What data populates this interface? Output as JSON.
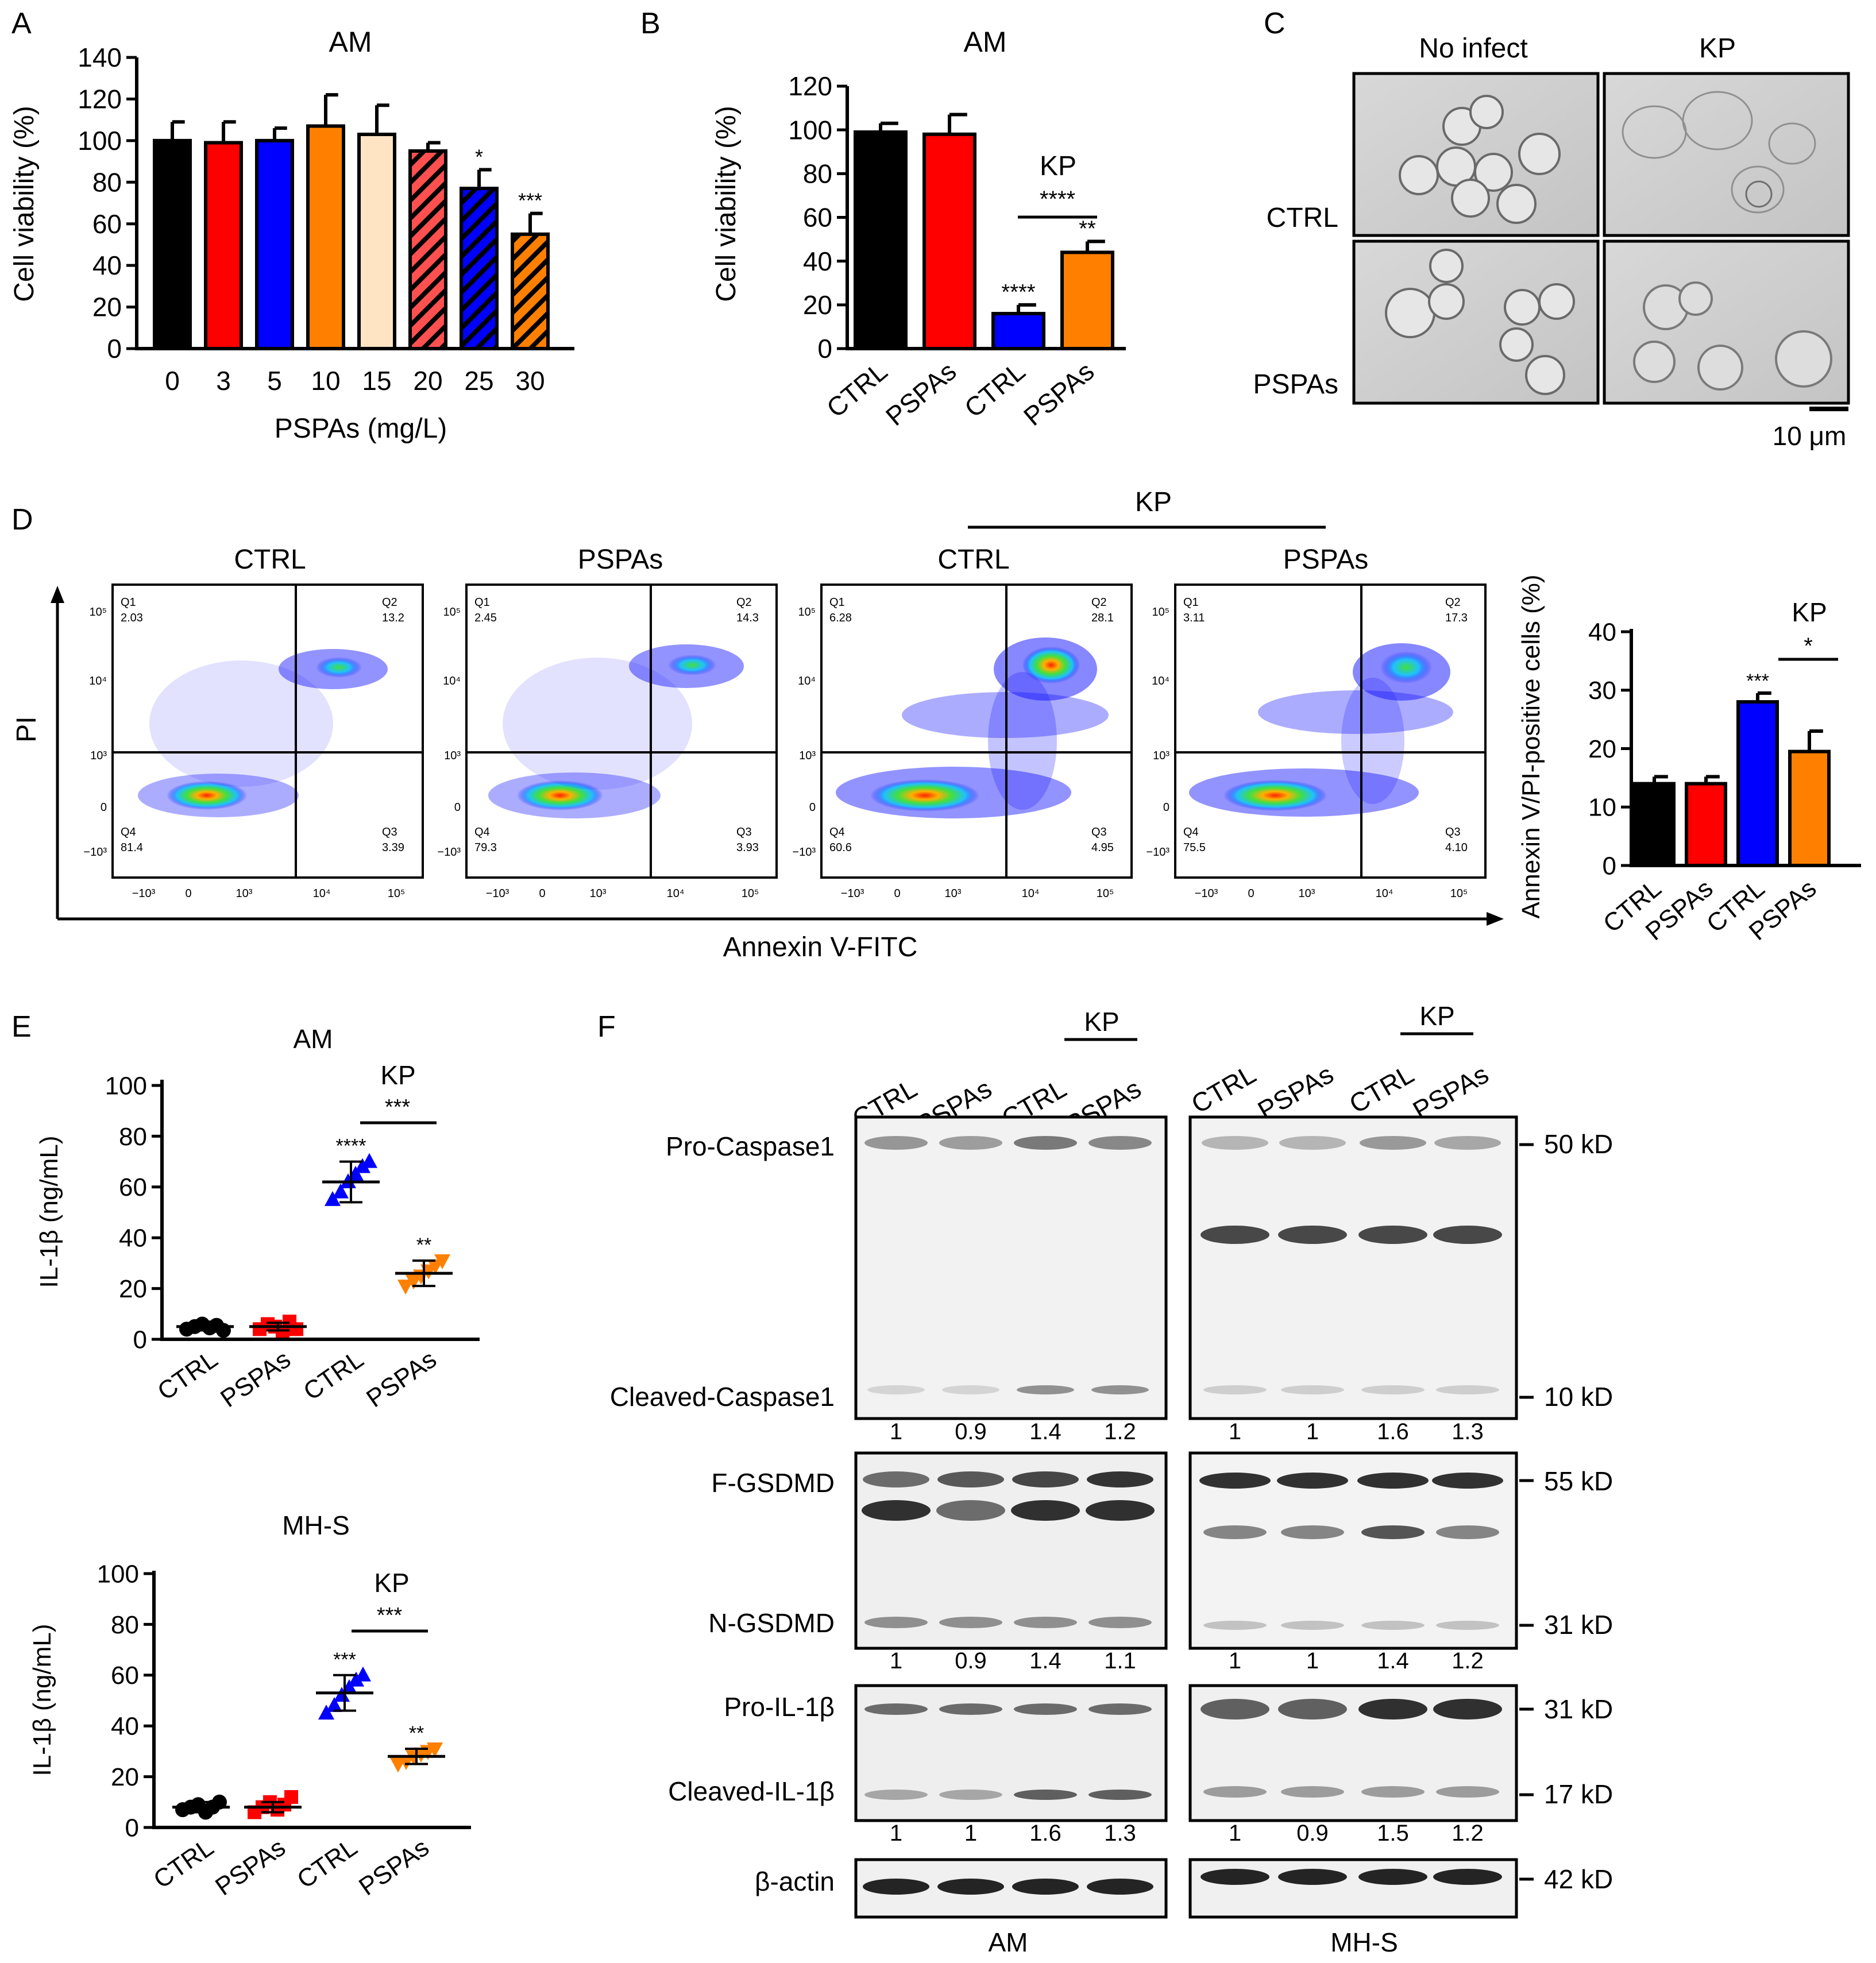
{
  "panels": {
    "A": {
      "letter": "A",
      "title": "AM"
    },
    "B": {
      "letter": "B",
      "title": "AM",
      "kp_label": "KP"
    },
    "C": {
      "letter": "C",
      "col1": "No infect",
      "col2": "KP",
      "row1": "CTRL",
      "row2": "PSPAs",
      "scale_bar": "10 μm"
    },
    "D": {
      "letter": "D",
      "kp_label": "KP",
      "y_axis_label": "PI",
      "x_axis_label": "Annexin V-FITC"
    },
    "E": {
      "letter": "E"
    },
    "F": {
      "letter": "F"
    }
  },
  "colors": {
    "black": "#000000",
    "red": "#ff0000",
    "blue": "#0000ff",
    "orange": "#ff8000",
    "peach": "#ffe4c4",
    "lightred": "#ff5050"
  },
  "chart_data": [
    {
      "id": "A",
      "type": "bar",
      "title": "AM",
      "xlabel": "PSPAs (mg/L)",
      "ylabel": "Cell viability (%)",
      "ylim": [
        0,
        140
      ],
      "yticks": [
        0,
        20,
        40,
        60,
        80,
        100,
        120,
        140
      ],
      "categories": [
        "0",
        "3",
        "5",
        "10",
        "15",
        "20",
        "25",
        "30"
      ],
      "values": [
        100,
        99,
        100,
        107,
        103,
        95,
        77,
        55
      ],
      "errors": [
        9,
        10,
        6,
        15,
        14,
        4,
        9,
        10
      ],
      "colors": [
        "#000000",
        "#ff0000",
        "#0000ff",
        "#ff8000",
        "#ffe4c4",
        "#ff5050",
        "#0000ff",
        "#ff8000"
      ],
      "hatched": [
        false,
        false,
        false,
        false,
        false,
        true,
        true,
        true
      ],
      "annotations": [
        "",
        "",
        "",
        "",
        "",
        "",
        "*",
        "***"
      ]
    },
    {
      "id": "B",
      "type": "bar",
      "title": "AM",
      "ylabel": "Cell viability (%)",
      "ylim": [
        0,
        120
      ],
      "yticks": [
        0,
        20,
        40,
        60,
        80,
        100,
        120
      ],
      "categories": [
        "CTRL",
        "PSPAs",
        "CTRL",
        "PSPAs"
      ],
      "values": [
        99,
        98,
        16,
        44
      ],
      "errors": [
        4,
        9,
        4,
        5
      ],
      "colors": [
        "#000000",
        "#ff0000",
        "#0000ff",
        "#ff8000"
      ],
      "annotations": [
        "",
        "",
        "****",
        "**"
      ],
      "group_label": "KP",
      "comparison": "****"
    },
    {
      "id": "C",
      "type": "image_grid",
      "columns": [
        "No infect",
        "KP"
      ],
      "rows": [
        "CTRL",
        "PSPAs"
      ],
      "scale_bar": "10 μm"
    },
    {
      "id": "D_flow",
      "type": "scatter",
      "xlabel": "Annexin V-FITC",
      "ylabel": "PI",
      "group_label": "KP",
      "y_tick_labels": [
        "10⁵",
        "10⁴",
        "10³",
        "0",
        "−10³"
      ],
      "x_tick_labels": [
        "−10³",
        "0",
        "10³",
        "10⁴",
        "10⁵"
      ],
      "plots": [
        {
          "title": "CTRL",
          "Q1": "2.03",
          "Q2": "13.2",
          "Q3": "3.39",
          "Q4": "81.4"
        },
        {
          "title": "PSPAs",
          "Q1": "2.45",
          "Q2": "14.3",
          "Q3": "3.93",
          "Q4": "79.3"
        },
        {
          "title": "CTRL",
          "Q1": "6.28",
          "Q2": "28.1",
          "Q3": "4.95",
          "Q4": "60.6"
        },
        {
          "title": "PSPAs",
          "Q1": "3.11",
          "Q2": "17.3",
          "Q3": "4.10",
          "Q4": "75.5"
        }
      ]
    },
    {
      "id": "D_bar",
      "type": "bar",
      "ylabel": "Annexin V/PI-positive cells (%)",
      "ylim": [
        0,
        40
      ],
      "yticks": [
        0,
        10,
        20,
        30,
        40
      ],
      "categories": [
        "CTRL",
        "PSPAs",
        "CTRL",
        "PSPAs"
      ],
      "values": [
        14,
        14,
        28,
        19.5
      ],
      "errors": [
        1.2,
        1.2,
        1.5,
        3.5
      ],
      "colors": [
        "#000000",
        "#ff0000",
        "#0000ff",
        "#ff8000"
      ],
      "annotations": [
        "",
        "",
        "***",
        ""
      ],
      "group_label": "KP",
      "comparison": "*"
    },
    {
      "id": "E_AM",
      "type": "scatter",
      "title": "AM",
      "ylabel": "IL-1β (ng/mL)",
      "ylim": [
        0,
        100
      ],
      "yticks": [
        0,
        20,
        40,
        60,
        80,
        100
      ],
      "categories": [
        "CTRL",
        "PSPAs",
        "CTRL",
        "PSPAs"
      ],
      "means": [
        5,
        5,
        62,
        26
      ],
      "sd": [
        1.5,
        1.5,
        8,
        5
      ],
      "points": [
        [
          4,
          5,
          6,
          4.5,
          5.5,
          3.5
        ],
        [
          4,
          6,
          5,
          3,
          7,
          4
        ],
        [
          55,
          58,
          62,
          65,
          68,
          70
        ],
        [
          21,
          23,
          25,
          27,
          29,
          31
        ]
      ],
      "colors": [
        "#000000",
        "#ff0000",
        "#0000ff",
        "#ff8000"
      ],
      "annotations": [
        "",
        "",
        "****",
        "**"
      ],
      "group_label": "KP",
      "comparison": "***"
    },
    {
      "id": "E_MHS",
      "type": "scatter",
      "title": "MH-S",
      "ylabel": "IL-1β (ng/mL)",
      "ylim": [
        0,
        100
      ],
      "yticks": [
        0,
        20,
        40,
        60,
        80,
        100
      ],
      "categories": [
        "CTRL",
        "PSPAs",
        "CTRL",
        "PSPAs"
      ],
      "means": [
        8,
        8,
        53,
        28
      ],
      "sd": [
        2,
        2,
        7,
        3
      ],
      "points": [
        [
          7,
          8,
          9,
          6,
          8,
          10
        ],
        [
          6,
          8,
          10,
          7,
          9,
          12
        ],
        [
          45,
          48,
          52,
          55,
          58,
          60
        ],
        [
          25,
          26,
          28,
          29,
          30,
          31
        ]
      ],
      "colors": [
        "#000000",
        "#ff0000",
        "#0000ff",
        "#ff8000"
      ],
      "annotations": [
        "",
        "",
        "***",
        "**"
      ],
      "group_label": "KP",
      "comparison": "***"
    },
    {
      "id": "F",
      "type": "table",
      "lane_labels": [
        "CTRL",
        "PSPAs",
        "CTRL",
        "PSPAs"
      ],
      "group_label": "KP",
      "cells": [
        "AM",
        "MH-S"
      ],
      "band_labels": [
        "Pro-Caspase1",
        "Cleaved-Caspase1",
        "F-GSDMD",
        "N-GSDMD",
        "Pro-IL-1β",
        "Cleaved-IL-1β",
        "β-actin"
      ],
      "markers": [
        "50 kD",
        "10 kD",
        "55 kD",
        "31 kD",
        "31 kD",
        "17 kD",
        "42 kD"
      ],
      "quant": {
        "AM": [
          [
            "1",
            "0.9",
            "1.4",
            "1.2"
          ],
          [
            "1",
            "0.9",
            "1.4",
            "1.1"
          ],
          [
            "1",
            "1",
            "1.6",
            "1.3"
          ]
        ],
        "MH-S": [
          [
            "1",
            "1",
            "1.6",
            "1.3"
          ],
          [
            "1",
            "1",
            "1.4",
            "1.2"
          ],
          [
            "1",
            "0.9",
            "1.5",
            "1.2"
          ]
        ]
      }
    }
  ]
}
